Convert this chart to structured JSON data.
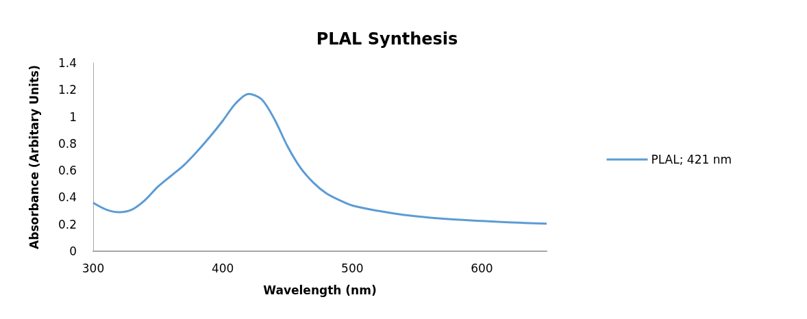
{
  "chart_data": {
    "type": "line",
    "title": "PLAL Synthesis",
    "xlabel": "Wavelength (nm)",
    "ylabel": "Absorbance (Arbitary Units)",
    "x": [
      300,
      310,
      320,
      330,
      340,
      350,
      360,
      370,
      380,
      390,
      400,
      410,
      420,
      430,
      440,
      450,
      460,
      470,
      480,
      490,
      500,
      520,
      540,
      560,
      580,
      600,
      620,
      650
    ],
    "series": [
      {
        "name": "PLAL; 421 nm",
        "color": "#5b9bd5",
        "values": [
          0.36,
          0.31,
          0.29,
          0.31,
          0.38,
          0.48,
          0.56,
          0.64,
          0.74,
          0.85,
          0.97,
          1.1,
          1.17,
          1.13,
          0.98,
          0.78,
          0.62,
          0.51,
          0.43,
          0.38,
          0.34,
          0.3,
          0.27,
          0.25,
          0.235,
          0.225,
          0.215,
          0.205
        ]
      }
    ],
    "xlim": [
      300,
      650
    ],
    "xticks": [
      300,
      400,
      500,
      600
    ],
    "ylim": [
      0,
      1.4
    ],
    "yticks": [
      0,
      0.2,
      0.4,
      0.6,
      0.8,
      1,
      1.2,
      1.4
    ],
    "grid": false,
    "legend": "right",
    "marker": "none",
    "line_style": "solid"
  }
}
